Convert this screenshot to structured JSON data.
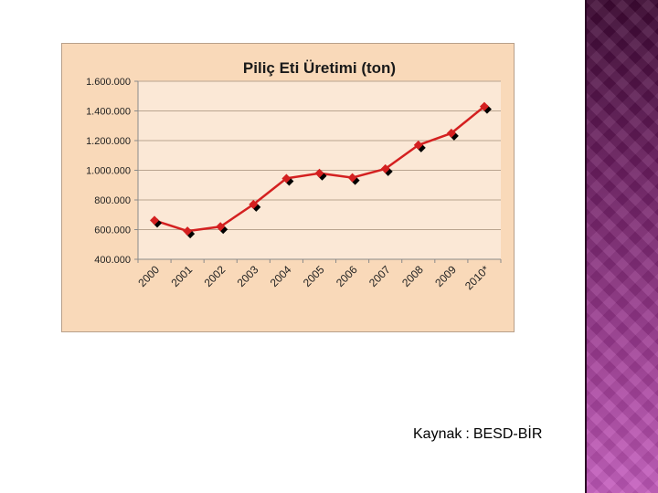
{
  "source": {
    "label": "Kaynak",
    "separator": ":",
    "value": "BESD-BİR"
  },
  "colors": {
    "series_line": "#d42020",
    "marker_fill": "#d42020",
    "marker_shadow": "#000000",
    "plot_background": "#fbe8d6",
    "frame_background": "#f9d9b9",
    "side_band": "#8a2f7e"
  },
  "chart_data": {
    "type": "line",
    "title": "Piliç Eti Üretimi (ton)",
    "xlabel": "",
    "ylabel": "",
    "categories": [
      "2000",
      "2001",
      "2002",
      "2003",
      "2004",
      "2005",
      "2006",
      "2007",
      "2008",
      "2009",
      "2010*"
    ],
    "series": [
      {
        "values": [
          662000,
          590000,
          620000,
          770000,
          945000,
          980000,
          950000,
          1010000,
          1170000,
          1250000,
          1430000
        ]
      }
    ],
    "ylim": [
      400000,
      1600000
    ],
    "yticks": [
      400000,
      600000,
      800000,
      1000000,
      1200000,
      1400000,
      1600000
    ],
    "ytick_labels": [
      "400.000",
      "600.000",
      "800.000",
      "1.000.000",
      "1.200.000",
      "1.400.000",
      "1.600.000"
    ],
    "grid": true,
    "legend": "none"
  }
}
